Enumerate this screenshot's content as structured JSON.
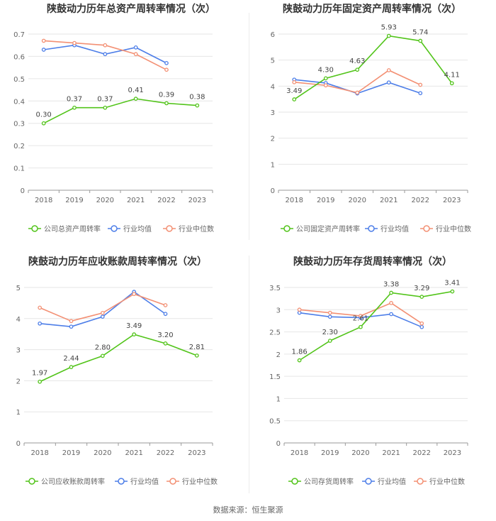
{
  "colors": {
    "company": "#52c41a",
    "industry_avg": "#4d7ee8",
    "industry_median": "#f39074",
    "grid": "#e6e6e6",
    "axis_text": "#666666",
    "label_text": "#444444"
  },
  "legend": {
    "industry_avg": "行业均值",
    "industry_median": "行业中位数"
  },
  "footer": {
    "source": "数据来源：恒生聚源"
  },
  "chart_data": [
    {
      "type": "line",
      "title": "陕鼓动力历年总资产周转率情况（次）",
      "categories": [
        "2018",
        "2019",
        "2020",
        "2021",
        "2022",
        "2023"
      ],
      "yticks": [
        "0",
        "0.1",
        "0.2",
        "0.3",
        "0.4",
        "0.5",
        "0.6",
        "0.7"
      ],
      "ylim": [
        0,
        0.7
      ],
      "series": [
        {
          "name": "公司总资产周转率",
          "role": "company",
          "values": [
            0.3,
            0.37,
            0.37,
            0.41,
            0.39,
            0.38
          ],
          "labels": [
            "0.30",
            "0.37",
            "0.37",
            "0.41",
            "0.39",
            "0.38"
          ]
        },
        {
          "name": "行业均值",
          "role": "industry_avg",
          "values": [
            0.63,
            0.65,
            0.61,
            0.64,
            0.57,
            null
          ]
        },
        {
          "name": "行业中位数",
          "role": "industry_median",
          "values": [
            0.67,
            0.66,
            0.65,
            0.61,
            0.54,
            null
          ]
        }
      ]
    },
    {
      "type": "line",
      "title": "陕鼓动力历年固定资产周转率情况（次）",
      "categories": [
        "2018",
        "2019",
        "2020",
        "2021",
        "2022",
        "2023"
      ],
      "yticks": [
        "0",
        "1",
        "2",
        "3",
        "4",
        "5",
        "6"
      ],
      "ylim": [
        0,
        6
      ],
      "series": [
        {
          "name": "公司固定资产周转率",
          "role": "company",
          "values": [
            3.49,
            4.3,
            4.63,
            5.93,
            5.74,
            4.11
          ],
          "labels": [
            "3.49",
            "4.30",
            "4.63",
            "5.93",
            "5.74",
            "4.11"
          ]
        },
        {
          "name": "行业均值",
          "role": "industry_avg",
          "values": [
            4.25,
            4.12,
            3.72,
            4.14,
            3.73,
            null
          ]
        },
        {
          "name": "行业中位数",
          "role": "industry_median",
          "values": [
            4.15,
            4.03,
            3.75,
            4.61,
            4.05,
            null
          ]
        }
      ]
    },
    {
      "type": "line",
      "title": "陕鼓动力历年应收账款周转率情况（次）",
      "categories": [
        "2018",
        "2019",
        "2020",
        "2021",
        "2022",
        "2023"
      ],
      "yticks": [
        "0",
        "1",
        "2",
        "3",
        "4",
        "5"
      ],
      "ylim": [
        0,
        5
      ],
      "series": [
        {
          "name": "公司应收账款周转率",
          "role": "company",
          "values": [
            1.97,
            2.44,
            2.8,
            3.49,
            3.2,
            2.81
          ],
          "labels": [
            "1.97",
            "2.44",
            "2.80",
            "3.49",
            "3.20",
            "2.81"
          ]
        },
        {
          "name": "行业均值",
          "role": "industry_avg",
          "values": [
            3.84,
            3.74,
            4.06,
            4.86,
            4.15,
            null
          ]
        },
        {
          "name": "行业中位数",
          "role": "industry_median",
          "values": [
            4.35,
            3.92,
            4.18,
            4.79,
            4.43,
            null
          ]
        }
      ]
    },
    {
      "type": "line",
      "title": "陕鼓动力历年存货周转率情况（次）",
      "categories": [
        "2018",
        "2019",
        "2020",
        "2021",
        "2022",
        "2023"
      ],
      "yticks": [
        "0",
        "0.5",
        "1",
        "1.5",
        "2",
        "2.5",
        "3",
        "3.5"
      ],
      "ylim": [
        0,
        3.5
      ],
      "series": [
        {
          "name": "公司存货周转率",
          "role": "company",
          "values": [
            1.86,
            2.3,
            2.61,
            3.38,
            3.29,
            3.41
          ],
          "labels": [
            "1.86",
            "2.30",
            "2.61",
            "3.38",
            "3.29",
            "3.41"
          ]
        },
        {
          "name": "行业均值",
          "role": "industry_avg",
          "values": [
            2.93,
            2.84,
            2.82,
            2.9,
            2.61,
            null
          ]
        },
        {
          "name": "行业中位数",
          "role": "industry_median",
          "values": [
            3.0,
            2.93,
            2.86,
            3.15,
            2.69,
            null
          ]
        }
      ]
    }
  ]
}
